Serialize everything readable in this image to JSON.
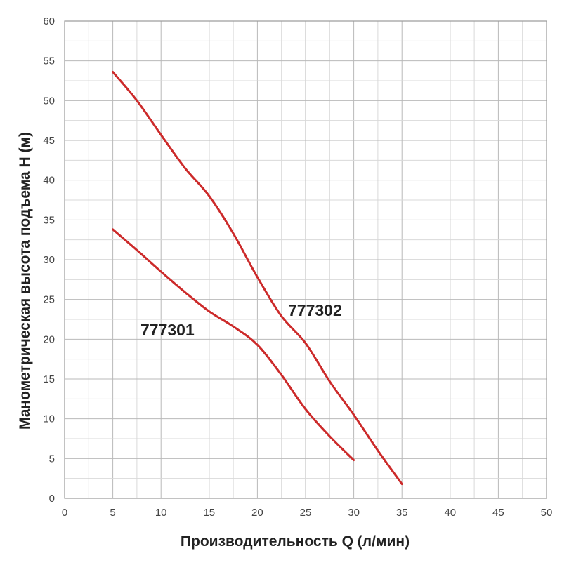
{
  "chart_data": {
    "type": "line",
    "title": "",
    "xlabel": "Производительность Q (л/мин)",
    "ylabel": "Манометрическая высота подъема Н (м)",
    "xlim": [
      0,
      50
    ],
    "ylim": [
      0,
      60
    ],
    "x_ticks": [
      0,
      5,
      10,
      15,
      20,
      25,
      30,
      35,
      40,
      45,
      50
    ],
    "y_ticks": [
      0,
      5,
      10,
      15,
      20,
      25,
      30,
      35,
      40,
      45,
      50,
      55,
      60
    ],
    "grid": true,
    "minor_grid_step_x": 2.5,
    "minor_grid_step_y": 2.5,
    "legend": "none",
    "line_color": "#cc2a2a",
    "series": [
      {
        "name": "777301",
        "x": [
          5,
          7.5,
          10,
          12.5,
          15,
          17.5,
          20,
          22.5,
          25,
          27.5,
          30
        ],
        "y": [
          33.8,
          31.2,
          28.5,
          25.9,
          23.5,
          21.6,
          19.3,
          15.5,
          11.2,
          7.8,
          4.8
        ]
      },
      {
        "name": "777302",
        "x": [
          5,
          7.5,
          10,
          12.5,
          15,
          17.5,
          20,
          22.5,
          25,
          27.5,
          30,
          32.5,
          35
        ],
        "y": [
          53.6,
          50.0,
          45.7,
          41.5,
          38.0,
          33.3,
          27.8,
          22.9,
          19.5,
          14.7,
          10.5,
          6.0,
          1.8
        ]
      }
    ]
  }
}
